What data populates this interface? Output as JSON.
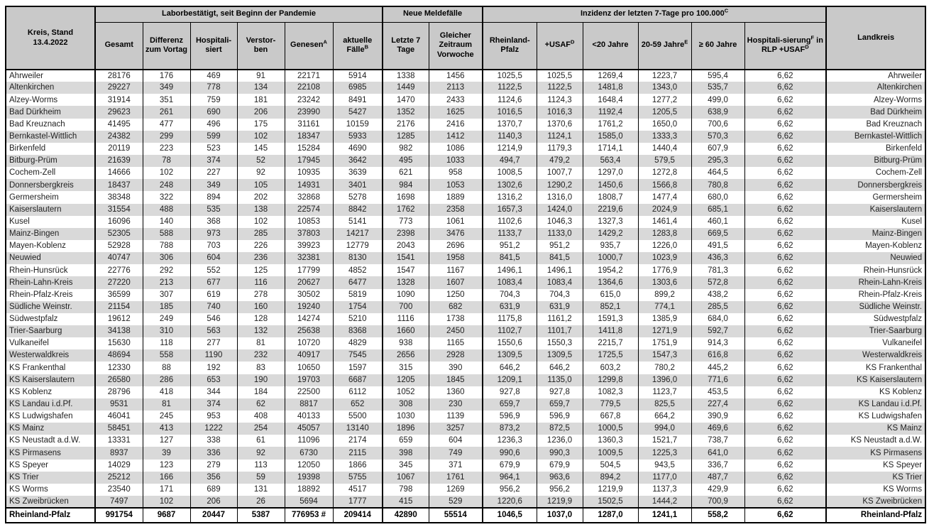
{
  "header": {
    "corner_left": "Kreis, Stand\n13.4.2022",
    "corner_right": "Landkreis",
    "groups": [
      {
        "label": "Laborbestätigt, seit Beginn der Pandemie"
      },
      {
        "label": "Neue Meldefälle"
      },
      {
        "label": "Inzidenz der letzten 7-Tage pro 100.000",
        "sup": "C"
      }
    ],
    "subheaders": [
      {
        "pre": "Gesamt"
      },
      {
        "pre": "Differenz zum Vortag"
      },
      {
        "pre": "Hospitali-siert"
      },
      {
        "pre": "Verstor-ben"
      },
      {
        "pre": "Genesen",
        "sup": "A"
      },
      {
        "pre": "aktuelle Fälle",
        "sup": "B"
      },
      {
        "pre": "Letzte 7 Tage"
      },
      {
        "pre": "Gleicher Zeitraum Vorwoche"
      },
      {
        "pre": "Rheinland-Pfalz"
      },
      {
        "pre": "+USAF",
        "sup": "D"
      },
      {
        "pre": "<20 Jahre"
      },
      {
        "pre": "20-59 Jahre",
        "sup": "E"
      },
      {
        "pre": "≥ 60 Jahre"
      },
      {
        "pre": "Hospitali-sierung",
        "sup": "F",
        "post": " in RLP +USAF",
        "sup2": "D"
      }
    ]
  },
  "table": {
    "note": "columns: Kreis, Gesamt, Differenz zum Vortag, Hospitalisiert, Verstorben, Genesen, aktuelle Fälle, Letzte 7 Tage, Gleicher Zeitraum Vorwoche, Inzidenz RLP, Inzidenz +USAF, <20 Jahre, 20-59 Jahre, ≥60 Jahre, Hospitalisierung in RLP +USAF; Landkreis column repeats the Kreis name",
    "rows": [
      [
        "Ahrweiler",
        "28176",
        "176",
        "469",
        "91",
        "22171",
        "5914",
        "1338",
        "1456",
        "1025,5",
        "1025,5",
        "1269,4",
        "1223,7",
        "595,4",
        "6,62"
      ],
      [
        "Altenkirchen",
        "29227",
        "349",
        "778",
        "134",
        "22108",
        "6985",
        "1449",
        "2113",
        "1122,5",
        "1122,5",
        "1481,8",
        "1343,0",
        "535,7",
        "6,62"
      ],
      [
        "Alzey-Worms",
        "31914",
        "351",
        "759",
        "181",
        "23242",
        "8491",
        "1470",
        "2433",
        "1124,6",
        "1124,3",
        "1648,4",
        "1277,2",
        "499,0",
        "6,62"
      ],
      [
        "Bad Dürkheim",
        "29623",
        "261",
        "690",
        "206",
        "23990",
        "5427",
        "1352",
        "1625",
        "1016,5",
        "1016,3",
        "1192,4",
        "1205,5",
        "638,9",
        "6,62"
      ],
      [
        "Bad Kreuznach",
        "41495",
        "477",
        "496",
        "175",
        "31161",
        "10159",
        "2176",
        "2416",
        "1370,7",
        "1370,6",
        "1761,2",
        "1650,0",
        "700,6",
        "6,62"
      ],
      [
        "Bernkastel-Wittlich",
        "24382",
        "299",
        "599",
        "102",
        "18347",
        "5933",
        "1285",
        "1412",
        "1140,3",
        "1124,1",
        "1585,0",
        "1333,3",
        "570,3",
        "6,62"
      ],
      [
        "Birkenfeld",
        "20119",
        "223",
        "523",
        "145",
        "15284",
        "4690",
        "982",
        "1086",
        "1214,9",
        "1179,3",
        "1714,1",
        "1440,4",
        "607,9",
        "6,62"
      ],
      [
        "Bitburg-Prüm",
        "21639",
        "78",
        "374",
        "52",
        "17945",
        "3642",
        "495",
        "1033",
        "494,7",
        "479,2",
        "563,4",
        "579,5",
        "295,3",
        "6,62"
      ],
      [
        "Cochem-Zell",
        "14666",
        "102",
        "227",
        "92",
        "10935",
        "3639",
        "621",
        "958",
        "1008,5",
        "1007,7",
        "1297,0",
        "1272,8",
        "464,5",
        "6,62"
      ],
      [
        "Donnersbergkreis",
        "18437",
        "248",
        "349",
        "105",
        "14931",
        "3401",
        "984",
        "1053",
        "1302,6",
        "1290,2",
        "1450,6",
        "1566,8",
        "780,8",
        "6,62"
      ],
      [
        "Germersheim",
        "38348",
        "322",
        "894",
        "202",
        "32868",
        "5278",
        "1698",
        "1889",
        "1316,2",
        "1316,0",
        "1808,7",
        "1477,4",
        "680,0",
        "6,62"
      ],
      [
        "Kaiserslautern",
        "31554",
        "488",
        "535",
        "138",
        "22574",
        "8842",
        "1762",
        "2358",
        "1657,3",
        "1424,0",
        "2219,6",
        "2024,9",
        "685,1",
        "6,62"
      ],
      [
        "Kusel",
        "16096",
        "140",
        "368",
        "102",
        "10853",
        "5141",
        "773",
        "1061",
        "1102,6",
        "1046,3",
        "1327,3",
        "1461,4",
        "460,1",
        "6,62"
      ],
      [
        "Mainz-Bingen",
        "52305",
        "588",
        "973",
        "285",
        "37803",
        "14217",
        "2398",
        "3476",
        "1133,7",
        "1133,0",
        "1429,2",
        "1283,8",
        "669,5",
        "6,62"
      ],
      [
        "Mayen-Koblenz",
        "52928",
        "788",
        "703",
        "226",
        "39923",
        "12779",
        "2043",
        "2696",
        "951,2",
        "951,2",
        "935,7",
        "1226,0",
        "491,5",
        "6,62"
      ],
      [
        "Neuwied",
        "40747",
        "306",
        "604",
        "236",
        "32381",
        "8130",
        "1541",
        "1958",
        "841,5",
        "841,5",
        "1000,7",
        "1023,9",
        "436,3",
        "6,62"
      ],
      [
        "Rhein-Hunsrück",
        "22776",
        "292",
        "552",
        "125",
        "17799",
        "4852",
        "1547",
        "1167",
        "1496,1",
        "1496,1",
        "1954,2",
        "1776,9",
        "781,3",
        "6,62"
      ],
      [
        "Rhein-Lahn-Kreis",
        "27220",
        "213",
        "677",
        "116",
        "20627",
        "6477",
        "1328",
        "1607",
        "1083,4",
        "1083,4",
        "1364,6",
        "1303,6",
        "572,8",
        "6,62"
      ],
      [
        "Rhein-Pfalz-Kreis",
        "36599",
        "307",
        "619",
        "278",
        "30502",
        "5819",
        "1090",
        "1250",
        "704,3",
        "704,3",
        "615,0",
        "899,2",
        "438,2",
        "6,62"
      ],
      [
        "Südliche Weinstr.",
        "21154",
        "185",
        "740",
        "160",
        "19240",
        "1754",
        "700",
        "682",
        "631,9",
        "631,9",
        "852,1",
        "774,1",
        "285,5",
        "6,62"
      ],
      [
        "Südwestpfalz",
        "19612",
        "249",
        "546",
        "128",
        "14274",
        "5210",
        "1116",
        "1738",
        "1175,8",
        "1161,2",
        "1591,3",
        "1385,9",
        "684,0",
        "6,62"
      ],
      [
        "Trier-Saarburg",
        "34138",
        "310",
        "563",
        "132",
        "25638",
        "8368",
        "1660",
        "2450",
        "1102,7",
        "1101,7",
        "1411,8",
        "1271,9",
        "592,7",
        "6,62"
      ],
      [
        "Vulkaneifel",
        "15630",
        "118",
        "277",
        "81",
        "10720",
        "4829",
        "938",
        "1165",
        "1550,6",
        "1550,3",
        "2215,7",
        "1751,9",
        "914,3",
        "6,62"
      ],
      [
        "Westerwaldkreis",
        "48694",
        "558",
        "1190",
        "232",
        "40917",
        "7545",
        "2656",
        "2928",
        "1309,5",
        "1309,5",
        "1725,5",
        "1547,3",
        "616,8",
        "6,62"
      ],
      [
        "KS Frankenthal",
        "12330",
        "88",
        "192",
        "83",
        "10650",
        "1597",
        "315",
        "390",
        "646,2",
        "646,2",
        "603,2",
        "780,2",
        "445,2",
        "6,62"
      ],
      [
        "KS Kaiserslautern",
        "26580",
        "286",
        "653",
        "190",
        "19703",
        "6687",
        "1205",
        "1845",
        "1209,1",
        "1135,0",
        "1299,8",
        "1396,0",
        "771,6",
        "6,62"
      ],
      [
        "KS Koblenz",
        "28796",
        "418",
        "344",
        "184",
        "22500",
        "6112",
        "1052",
        "1360",
        "927,8",
        "927,8",
        "1082,3",
        "1123,7",
        "453,5",
        "6,62"
      ],
      [
        "KS Landau i.d.Pf.",
        "9531",
        "81",
        "374",
        "62",
        "8817",
        "652",
        "308",
        "230",
        "659,7",
        "659,7",
        "779,5",
        "825,5",
        "227,4",
        "6,62"
      ],
      [
        "KS Ludwigshafen",
        "46041",
        "245",
        "953",
        "408",
        "40133",
        "5500",
        "1030",
        "1139",
        "596,9",
        "596,9",
        "667,8",
        "664,2",
        "390,9",
        "6,62"
      ],
      [
        "KS Mainz",
        "58451",
        "413",
        "1222",
        "254",
        "45057",
        "13140",
        "1896",
        "3257",
        "873,2",
        "872,5",
        "1000,5",
        "994,0",
        "469,6",
        "6,62"
      ],
      [
        "KS Neustadt a.d.W.",
        "13331",
        "127",
        "338",
        "61",
        "11096",
        "2174",
        "659",
        "604",
        "1236,3",
        "1236,0",
        "1360,3",
        "1521,7",
        "738,7",
        "6,62"
      ],
      [
        "KS Pirmasens",
        "8937",
        "39",
        "336",
        "92",
        "6730",
        "2115",
        "398",
        "749",
        "990,6",
        "990,3",
        "1009,5",
        "1225,3",
        "641,0",
        "6,62"
      ],
      [
        "KS Speyer",
        "14029",
        "123",
        "279",
        "113",
        "12050",
        "1866",
        "345",
        "371",
        "679,9",
        "679,9",
        "504,5",
        "943,5",
        "336,7",
        "6,62"
      ],
      [
        "KS Trier",
        "25212",
        "166",
        "356",
        "59",
        "19398",
        "5755",
        "1067",
        "1761",
        "964,1",
        "963,6",
        "894,2",
        "1177,0",
        "487,7",
        "6,62"
      ],
      [
        "KS Worms",
        "23540",
        "171",
        "689",
        "131",
        "18892",
        "4517",
        "798",
        "1269",
        "956,2",
        "956,2",
        "1219,9",
        "1137,3",
        "429,9",
        "6,62"
      ],
      [
        "KS Zweibrücken",
        "7497",
        "102",
        "206",
        "26",
        "5694",
        "1777",
        "415",
        "529",
        "1220,6",
        "1219,9",
        "1502,5",
        "1444,2",
        "700,9",
        "6,62"
      ]
    ],
    "total": [
      "Rheinland-Pfalz",
      "991754",
      "9687",
      "20447",
      "5387",
      "776953 #",
      "209414",
      "42890",
      "55514",
      "1046,5",
      "1037,0",
      "1287,0",
      "1241,1",
      "558,2",
      "6,62"
    ]
  },
  "colors": {
    "header_bg": "#c9c9c9",
    "stripe_bg": "#d9d9d9",
    "border": "#000000"
  }
}
